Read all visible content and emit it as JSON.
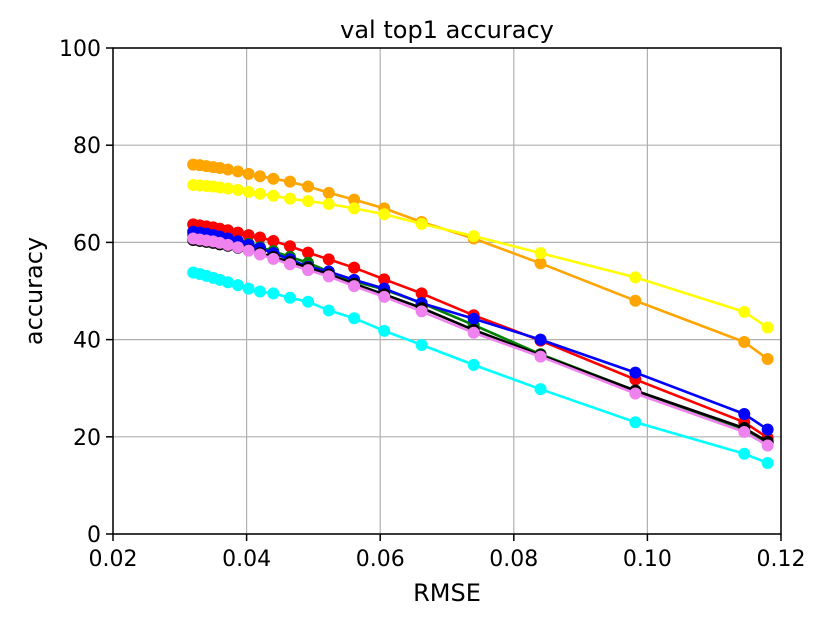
{
  "chart_data": {
    "type": "line",
    "title": "val top1 accuracy",
    "xlabel": "RMSE",
    "ylabel": "accuracy",
    "xlim": [
      0.02,
      0.12
    ],
    "ylim": [
      0,
      100
    ],
    "xticks": [
      "0.02",
      "0.04",
      "0.06",
      "0.08",
      "0.10",
      "0.12"
    ],
    "yticks": [
      "0",
      "20",
      "40",
      "60",
      "80",
      "100"
    ],
    "grid": true,
    "legend": "none",
    "x": [
      0.032,
      0.033,
      0.034,
      0.035,
      0.036,
      0.0372,
      0.0387,
      0.0403,
      0.042,
      0.044,
      0.0465,
      0.0492,
      0.0523,
      0.0561,
      0.0606,
      0.0662,
      0.074,
      0.084,
      0.0982,
      0.1145,
      0.118
    ],
    "series": [
      {
        "color": "#ffa500",
        "values": [
          76.0,
          75.9,
          75.7,
          75.5,
          75.3,
          75.0,
          74.6,
          74.1,
          73.6,
          73.1,
          72.5,
          71.5,
          70.2,
          68.8,
          67.0,
          64.2,
          60.8,
          55.7,
          48.0,
          39.5,
          36.0
        ]
      },
      {
        "color": "#ffff00",
        "values": [
          71.8,
          71.7,
          71.6,
          71.5,
          71.3,
          71.1,
          70.8,
          70.4,
          70.0,
          69.6,
          69.0,
          68.5,
          67.9,
          67.0,
          65.8,
          63.8,
          61.3,
          57.8,
          52.8,
          45.7,
          42.5
        ]
      },
      {
        "color": "#ff0000",
        "values": [
          63.7,
          63.5,
          63.3,
          63.1,
          62.8,
          62.5,
          62.0,
          61.5,
          61.0,
          60.3,
          59.2,
          57.9,
          56.5,
          54.8,
          52.4,
          49.5,
          45.0,
          39.8,
          31.8,
          23.0,
          19.8
        ]
      },
      {
        "color": "#008000",
        "values": [
          61.5,
          61.4,
          61.2,
          61.0,
          60.8,
          60.5,
          60.2,
          59.7,
          59.0,
          58.2,
          57.0,
          55.8,
          54.0,
          52.0,
          50.3,
          47.5,
          43.0,
          37.0,
          29.5,
          21.5,
          18.8
        ]
      },
      {
        "color": "#0000ff",
        "values": [
          62.2,
          62.0,
          61.8,
          61.5,
          61.2,
          60.8,
          60.2,
          59.5,
          58.8,
          57.8,
          56.5,
          55.0,
          54.0,
          52.3,
          50.5,
          47.5,
          44.3,
          40.0,
          33.2,
          24.7,
          21.5
        ]
      },
      {
        "color": "#000000",
        "values": [
          60.5,
          60.3,
          60.1,
          59.9,
          59.6,
          59.3,
          58.9,
          58.4,
          57.8,
          57.0,
          56.0,
          54.8,
          53.4,
          51.5,
          49.3,
          46.5,
          42.0,
          36.8,
          29.5,
          21.8,
          19.0
        ]
      },
      {
        "color": "#ee82ee",
        "values": [
          60.8,
          60.6,
          60.4,
          60.2,
          59.9,
          59.5,
          59.0,
          58.3,
          57.5,
          56.6,
          55.5,
          54.3,
          53.0,
          51.0,
          48.8,
          45.8,
          41.4,
          36.5,
          28.9,
          21.0,
          18.2
        ]
      },
      {
        "color": "#00ffff",
        "values": [
          53.8,
          53.5,
          53.1,
          52.7,
          52.3,
          51.8,
          51.2,
          50.5,
          49.9,
          49.5,
          48.6,
          47.8,
          46.0,
          44.4,
          41.8,
          38.9,
          34.8,
          29.8,
          23.0,
          16.5,
          14.6
        ]
      }
    ]
  }
}
